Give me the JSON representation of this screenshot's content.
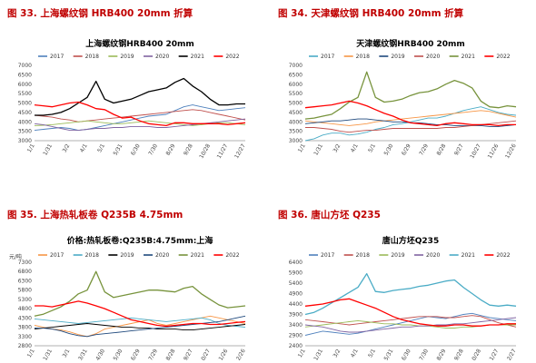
{
  "captions": [
    "图 33.  上海螺纹钢 HRB400  20mm  折算",
    "图 34.  天津螺纹钢 HRB400  20mm  折算",
    "图 35. 上海热轧板卷 Q235B  4.75mm",
    "图 36. 唐山方坯 Q235"
  ],
  "series_colors": {
    "2017": "#4f81bd",
    "2018": "#c0504d",
    "2019": "#9bbb59",
    "2020": "#8064a2",
    "2021": "#000000",
    "2022": "#ff0000"
  },
  "chart_data": [
    {
      "type": "line",
      "title": "上海螺纹钢HRB400 20mm",
      "ylabel": "",
      "ylim": [
        3000,
        7000
      ],
      "yticks": [
        3000,
        3500,
        4000,
        4500,
        5000,
        5500,
        6000,
        6500,
        7000
      ],
      "xticks": [
        "1/1",
        "1/31",
        "3/2",
        "4/1",
        "5/1",
        "5/31",
        "6/30",
        "7/30",
        "8/29",
        "9/28",
        "10/28",
        "11/27",
        "12/27"
      ],
      "legend": [
        "2017",
        "2018",
        "2019",
        "2020",
        "2021",
        "2022"
      ],
      "legend_position": "top",
      "series": [
        {
          "name": "2017",
          "color": "#4f81bd",
          "values": [
            3550,
            3600,
            3650,
            3700,
            3650,
            3550,
            3600,
            3700,
            3800,
            3900,
            4000,
            4100,
            4200,
            4300,
            4350,
            4400,
            4600,
            4800,
            4900,
            4800,
            4700,
            4600,
            4650,
            4700,
            4750
          ]
        },
        {
          "name": "2018",
          "color": "#c0504d",
          "values": [
            4350,
            4300,
            4250,
            4150,
            4100,
            4000,
            4050,
            4100,
            4150,
            4200,
            4250,
            4300,
            4350,
            4400,
            4450,
            4500,
            4550,
            4600,
            4650,
            4600,
            4500,
            4400,
            4300,
            4200,
            4100
          ]
        },
        {
          "name": "2019",
          "color": "#9bbb59",
          "values": [
            3800,
            3820,
            3850,
            3900,
            3950,
            4000,
            4050,
            4000,
            3950,
            3900,
            3900,
            3950,
            4000,
            4050,
            4000,
            3950,
            3900,
            3850,
            3800,
            3850,
            3900,
            3950,
            3950,
            3900,
            3850
          ]
        },
        {
          "name": "2020",
          "color": "#8064a2",
          "values": [
            3900,
            3850,
            3750,
            3650,
            3550,
            3550,
            3600,
            3650,
            3650,
            3700,
            3700,
            3750,
            3750,
            3750,
            3700,
            3700,
            3750,
            3800,
            3850,
            3900,
            3950,
            4000,
            4050,
            4100,
            4150
          ]
        },
        {
          "name": "2021",
          "color": "#000000",
          "values": [
            4350,
            4350,
            4400,
            4500,
            4700,
            5000,
            5300,
            6150,
            5200,
            5000,
            5100,
            5200,
            5400,
            5600,
            5700,
            5800,
            6100,
            6300,
            5900,
            5600,
            5200,
            4900,
            4900,
            4950,
            4950
          ]
        },
        {
          "name": "2022",
          "color": "#ff0000",
          "values": [
            4900,
            4850,
            4800,
            4900,
            5000,
            5050,
            4900,
            4700,
            4650,
            4400,
            4200,
            4250,
            4050,
            3900,
            3850,
            3800,
            3950,
            3950,
            3900,
            3900,
            3900,
            3900,
            3850,
            3900,
            3950
          ]
        }
      ]
    },
    {
      "type": "line",
      "title": "天津螺纹钢HRB400 20mm",
      "ylabel": "",
      "ylim": [
        3000,
        7000
      ],
      "yticks": [
        3000,
        3500,
        4000,
        4500,
        5000,
        5500,
        6000,
        6500,
        7000
      ],
      "xticks": [
        "1/1",
        "1/31",
        "3/2",
        "4/1",
        "5/1",
        "5/30",
        "6/29",
        "7/29",
        "8/28",
        "9/27",
        "10/27",
        "11/26",
        "12/26"
      ],
      "legend": [
        "2017",
        "2018",
        "2019",
        "2020",
        "2021",
        "2022"
      ],
      "legend_position": "top",
      "series": [
        {
          "name": "2017",
          "color": "#4bacc6",
          "values": [
            3000,
            3100,
            3300,
            3400,
            3400,
            3300,
            3350,
            3450,
            3600,
            3700,
            3850,
            3900,
            4000,
            4100,
            4200,
            4200,
            4300,
            4450,
            4600,
            4700,
            4800,
            4650,
            4500,
            4400,
            4350
          ]
        },
        {
          "name": "2018",
          "color": "#f79646",
          "values": [
            4050,
            4000,
            3950,
            3900,
            3850,
            3800,
            3850,
            3900,
            4000,
            4050,
            4100,
            4150,
            4200,
            4250,
            4300,
            4350,
            4400,
            4450,
            4500,
            4550,
            4600,
            4550,
            4450,
            4350,
            4250
          ]
        },
        {
          "name": "2019",
          "color": "#1f497d",
          "values": [
            3900,
            3950,
            4000,
            4050,
            4050,
            4100,
            4150,
            4150,
            4100,
            4050,
            4000,
            4000,
            3950,
            3950,
            3900,
            3850,
            3850,
            3800,
            3800,
            3800,
            3800,
            3750,
            3750,
            3800,
            3850
          ]
        },
        {
          "name": "2020",
          "color": "#c0504d",
          "values": [
            3700,
            3700,
            3650,
            3600,
            3500,
            3450,
            3500,
            3550,
            3550,
            3600,
            3650,
            3650,
            3650,
            3650,
            3650,
            3650,
            3700,
            3700,
            3750,
            3800,
            3850,
            3900,
            3950,
            4000,
            4050
          ]
        },
        {
          "name": "2021",
          "color": "#77933c",
          "values": [
            4150,
            4200,
            4300,
            4400,
            4700,
            5050,
            5300,
            6650,
            5300,
            5050,
            5100,
            5200,
            5400,
            5550,
            5600,
            5750,
            6000,
            6200,
            6050,
            5800,
            5100,
            4800,
            4750,
            4850,
            4800
          ]
        },
        {
          "name": "2022",
          "color": "#ff0000",
          "values": [
            4750,
            4800,
            4850,
            4900,
            5000,
            5100,
            5000,
            4850,
            4650,
            4450,
            4300,
            4100,
            3950,
            3900,
            3850,
            3800,
            3900,
            3950,
            3900,
            3850,
            3850,
            3850,
            3800,
            3850,
            3850
          ]
        }
      ]
    },
    {
      "type": "line",
      "title": "价格:热轧板卷:Q235B:4.75mm:上海",
      "ylabel": "元/吨",
      "ylim": [
        2800,
        7300
      ],
      "yticks": [
        2800,
        3300,
        3800,
        4300,
        4800,
        5300,
        5800,
        6300,
        6800,
        7300
      ],
      "xticks": [
        "1/1",
        "1/31",
        "3/1",
        "3/31",
        "4/30",
        "5/30",
        "6/29",
        "7/29",
        "8/28",
        "9/27",
        "10/27",
        "11/26",
        "12/26"
      ],
      "legend": [
        "2017",
        "2018",
        "2019",
        "2020",
        "2021",
        "2022"
      ],
      "legend_position": "top",
      "series": [
        {
          "name": "2017",
          "color": "#f79646",
          "values": [
            3900,
            3800,
            3700,
            3650,
            3550,
            3400,
            3300,
            3450,
            3700,
            3800,
            3900,
            4000,
            4100,
            4200,
            4000,
            3900,
            4000,
            4100,
            4200,
            4300,
            4400,
            4300,
            4200,
            4100,
            4000
          ]
        },
        {
          "name": "2018",
          "color": "#4bacc6",
          "values": [
            4250,
            4200,
            4150,
            4100,
            4050,
            4000,
            4050,
            4100,
            4150,
            4200,
            4250,
            4300,
            4250,
            4200,
            4150,
            4100,
            4150,
            4200,
            4250,
            4300,
            4200,
            4000,
            3900,
            3850,
            3800
          ]
        },
        {
          "name": "2019",
          "color": "#000000",
          "values": [
            3700,
            3750,
            3800,
            3850,
            3900,
            3950,
            4000,
            3950,
            3900,
            3850,
            3800,
            3800,
            3750,
            3750,
            3700,
            3700,
            3700,
            3650,
            3650,
            3700,
            3750,
            3800,
            3850,
            3900,
            3950
          ]
        },
        {
          "name": "2020",
          "color": "#1f497d",
          "values": [
            3750,
            3750,
            3700,
            3600,
            3450,
            3350,
            3300,
            3400,
            3450,
            3500,
            3550,
            3600,
            3650,
            3700,
            3750,
            3800,
            3850,
            3900,
            3950,
            4000,
            4050,
            4100,
            4200,
            4300,
            4400
          ]
        },
        {
          "name": "2021",
          "color": "#77933c",
          "values": [
            4400,
            4500,
            4700,
            4900,
            5200,
            5600,
            5800,
            6800,
            5700,
            5400,
            5500,
            5600,
            5700,
            5800,
            5800,
            5750,
            5700,
            5900,
            6000,
            5600,
            5300,
            5000,
            4850,
            4900,
            4950
          ]
        },
        {
          "name": "2022",
          "color": "#ff0000",
          "values": [
            4950,
            4950,
            4900,
            5000,
            5100,
            5200,
            5100,
            4950,
            4800,
            4600,
            4400,
            4200,
            4100,
            4000,
            3900,
            3850,
            3900,
            3950,
            4000,
            4000,
            3950,
            3950,
            4000,
            4050,
            4100
          ]
        }
      ]
    },
    {
      "type": "line",
      "title": "唐山方坯Q235",
      "ylabel": "",
      "ylim": [
        2400,
        6400
      ],
      "yticks": [
        2400,
        2900,
        3400,
        3900,
        4400,
        4900,
        5400,
        5900,
        6400
      ],
      "xticks": [
        "1/1",
        "1/31",
        "3/2",
        "4/1",
        "5/1",
        "5/31",
        "6/30",
        "7/30",
        "8/29",
        "9/28",
        "10/28",
        "11/27",
        "12/27"
      ],
      "legend": [
        "2017",
        "2018",
        "2019",
        "2020",
        "2021",
        "2022"
      ],
      "legend_position": "top",
      "series": [
        {
          "name": "2017",
          "color": "#4f81bd",
          "values": [
            2900,
            3000,
            3100,
            3050,
            3000,
            2950,
            3000,
            3100,
            3200,
            3300,
            3400,
            3500,
            3600,
            3700,
            3800,
            3750,
            3700,
            3800,
            3900,
            3950,
            3850,
            3750,
            3700,
            3650,
            3600
          ]
        },
        {
          "name": "2018",
          "color": "#c0504d",
          "values": [
            3650,
            3600,
            3550,
            3500,
            3450,
            3400,
            3450,
            3500,
            3550,
            3600,
            3650,
            3700,
            3750,
            3800,
            3800,
            3800,
            3750,
            3750,
            3800,
            3850,
            3800,
            3650,
            3500,
            3400,
            3300
          ]
        },
        {
          "name": "2019",
          "color": "#9bbb59",
          "values": [
            3300,
            3350,
            3400,
            3450,
            3500,
            3550,
            3600,
            3550,
            3500,
            3450,
            3450,
            3400,
            3400,
            3350,
            3350,
            3300,
            3250,
            3250,
            3300,
            3300,
            3350,
            3400,
            3400,
            3400,
            3400
          ]
        },
        {
          "name": "2020",
          "color": "#8064a2",
          "values": [
            3400,
            3350,
            3300,
            3200,
            3100,
            3050,
            3050,
            3100,
            3150,
            3200,
            3250,
            3300,
            3300,
            3350,
            3350,
            3400,
            3400,
            3450,
            3450,
            3500,
            3550,
            3600,
            3650,
            3700,
            3750
          ]
        },
        {
          "name": "2021",
          "color": "#4bacc6",
          "values": [
            3900,
            4000,
            4200,
            4450,
            4700,
            4950,
            5200,
            5850,
            5000,
            4950,
            5050,
            5100,
            5150,
            5250,
            5300,
            5400,
            5500,
            5550,
            5200,
            4900,
            4600,
            4350,
            4300,
            4350,
            4300
          ]
        },
        {
          "name": "2022",
          "color": "#ff0000",
          "values": [
            4300,
            4350,
            4400,
            4500,
            4600,
            4650,
            4500,
            4350,
            4200,
            4000,
            3800,
            3650,
            3550,
            3450,
            3400,
            3350,
            3350,
            3400,
            3400,
            3350,
            3350,
            3400,
            3400,
            3450,
            3450
          ]
        }
      ]
    }
  ]
}
